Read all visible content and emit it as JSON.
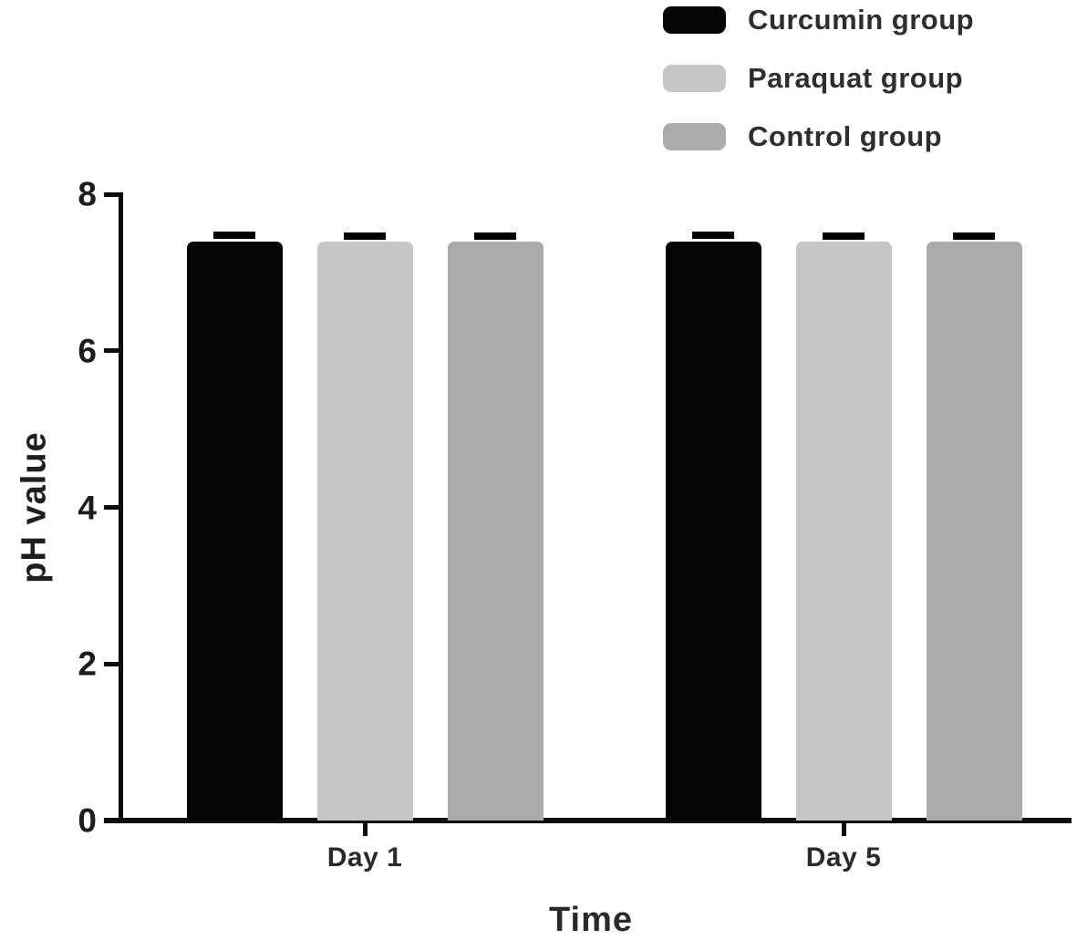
{
  "figure": {
    "background": "#ffffff",
    "text_color": "#2a2a2a",
    "axis_color": "#0d0d0d"
  },
  "chart_data": {
    "type": "bar",
    "title": "",
    "xlabel": "Time",
    "ylabel": "pH value",
    "categories": [
      "Day 1",
      "Day 5"
    ],
    "series": [
      {
        "name": "Curcumin group",
        "color": "#050505",
        "values": [
          7.4,
          7.4
        ],
        "errors": [
          0.08,
          0.08
        ]
      },
      {
        "name": "Paraquat group",
        "color": "#c6c6c6",
        "values": [
          7.4,
          7.4
        ],
        "errors": [
          0.07,
          0.07
        ]
      },
      {
        "name": "Control group",
        "color": "#ababab",
        "values": [
          7.4,
          7.4
        ],
        "errors": [
          0.07,
          0.07
        ]
      }
    ],
    "ylim": [
      0,
      8
    ],
    "yticks": [
      0,
      2,
      4,
      6,
      8
    ],
    "grid": false,
    "legend_position": "top-right",
    "error_bars": true,
    "error_bar_color": "#000000"
  }
}
